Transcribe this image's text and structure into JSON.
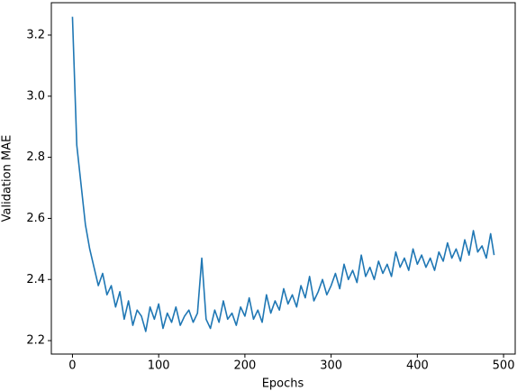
{
  "chart_data": {
    "type": "line",
    "xlabel": "Epochs",
    "ylabel": "Validation MAE",
    "x": [
      0,
      5,
      10,
      15,
      20,
      25,
      30,
      35,
      40,
      45,
      50,
      55,
      60,
      65,
      70,
      75,
      80,
      85,
      90,
      95,
      100,
      105,
      110,
      115,
      120,
      125,
      130,
      135,
      140,
      145,
      150,
      155,
      160,
      165,
      170,
      175,
      180,
      185,
      190,
      195,
      200,
      205,
      210,
      215,
      220,
      225,
      230,
      235,
      240,
      245,
      250,
      255,
      260,
      265,
      270,
      275,
      280,
      285,
      290,
      295,
      300,
      305,
      310,
      315,
      320,
      325,
      330,
      335,
      340,
      345,
      350,
      355,
      360,
      365,
      370,
      375,
      380,
      385,
      390,
      395,
      400,
      405,
      410,
      415,
      420,
      425,
      430,
      435,
      440,
      445,
      450,
      455,
      460,
      465,
      470,
      475,
      480,
      485,
      489
    ],
    "series": [
      {
        "color": "#1f77b4",
        "values": [
          3.26,
          2.84,
          2.71,
          2.58,
          2.5,
          2.44,
          2.38,
          2.42,
          2.35,
          2.38,
          2.31,
          2.36,
          2.27,
          2.33,
          2.25,
          2.3,
          2.28,
          2.23,
          2.31,
          2.27,
          2.32,
          2.24,
          2.29,
          2.26,
          2.31,
          2.25,
          2.28,
          2.3,
          2.26,
          2.29,
          2.47,
          2.27,
          2.24,
          2.3,
          2.26,
          2.33,
          2.27,
          2.29,
          2.25,
          2.31,
          2.28,
          2.34,
          2.27,
          2.3,
          2.26,
          2.35,
          2.29,
          2.33,
          2.3,
          2.37,
          2.32,
          2.35,
          2.31,
          2.38,
          2.34,
          2.41,
          2.33,
          2.36,
          2.4,
          2.35,
          2.38,
          2.42,
          2.37,
          2.45,
          2.4,
          2.43,
          2.39,
          2.48,
          2.41,
          2.44,
          2.4,
          2.46,
          2.42,
          2.45,
          2.41,
          2.49,
          2.44,
          2.47,
          2.43,
          2.5,
          2.45,
          2.48,
          2.44,
          2.47,
          2.43,
          2.49,
          2.46,
          2.52,
          2.47,
          2.5,
          2.46,
          2.53,
          2.48,
          2.56,
          2.49,
          2.51,
          2.47,
          2.55,
          2.48
        ]
      }
    ],
    "xlim": [
      -24.5,
      513.5
    ],
    "ylim": [
      2.156,
      3.306
    ],
    "xticks": [
      0,
      100,
      200,
      300,
      400,
      500
    ],
    "yticks": [
      2.2,
      2.4,
      2.6,
      2.8,
      {
        "value": 3,
        "label": "3.0"
      },
      3.2
    ],
    "grid": false
  }
}
